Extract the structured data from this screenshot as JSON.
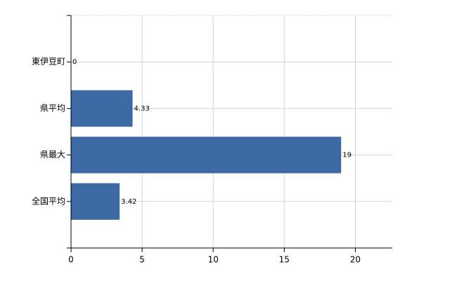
{
  "chart_data": {
    "type": "hbar",
    "categories": [
      "東伊豆町",
      "県平均",
      "県最大",
      "全国平均"
    ],
    "values": [
      0,
      4.33,
      19,
      3.42
    ],
    "color": "#3d6aa5",
    "xlim": [
      0,
      22.6
    ],
    "xticks": [
      0,
      5,
      10,
      15,
      20
    ],
    "grid": true
  }
}
